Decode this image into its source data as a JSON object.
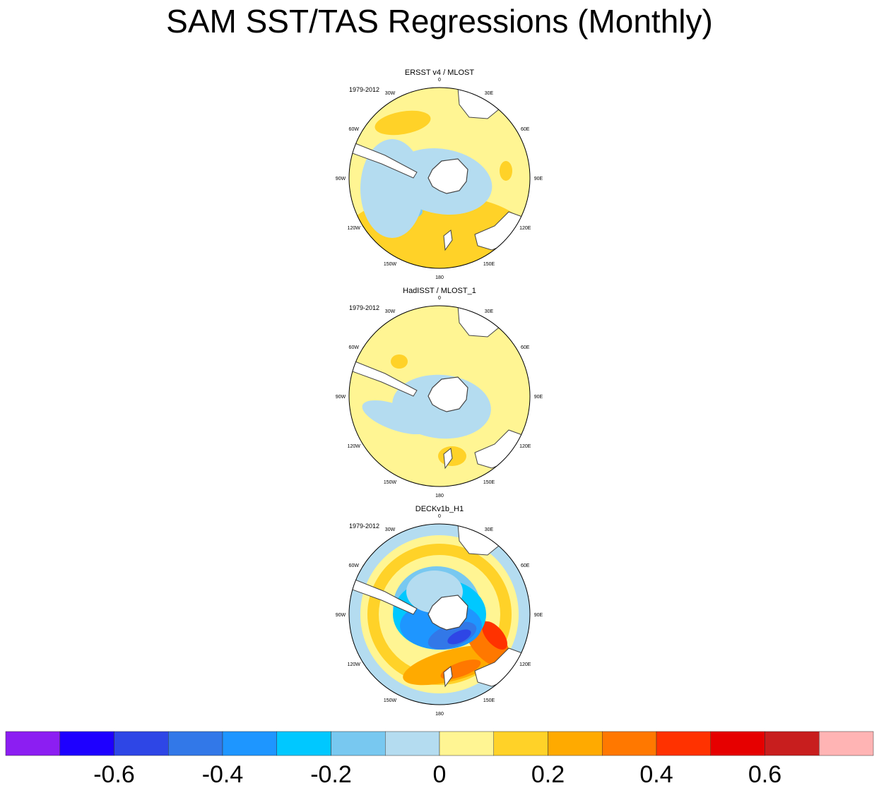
{
  "title": "SAM SST/TAS Regressions (Monthly)",
  "chart_data": {
    "type": "polar contour map",
    "projection": "south polar stereographic",
    "longitude_labels": [
      "0",
      "30E",
      "60E",
      "90E",
      "120E",
      "150E",
      "180",
      "150W",
      "120W",
      "90W",
      "60W",
      "30W"
    ],
    "panels": [
      {
        "name": "ERSST v4 / MLOST",
        "period": "1979-2012"
      },
      {
        "name": "HadISST / MLOST_1",
        "period": "1979-2012"
      },
      {
        "name": "DECKv1b_H1",
        "period": "1979-2012"
      }
    ],
    "colorbar": {
      "levels": [
        -0.7,
        -0.6,
        -0.5,
        -0.4,
        -0.3,
        -0.2,
        -0.1,
        0,
        0.1,
        0.2,
        0.3,
        0.4,
        0.5,
        0.6,
        0.7
      ],
      "tick_labels": [
        "-0.6",
        "-0.4",
        "-0.2",
        "0",
        "0.2",
        "0.4",
        "0.6"
      ],
      "colors": [
        "#8c1ef2",
        "#1e00ff",
        "#2e46e6",
        "#3278e8",
        "#1e96ff",
        "#00c8ff",
        "#78c8f0",
        "#b4dcf0",
        "#fff593",
        "#ffd228",
        "#ffaa00",
        "#ff7800",
        "#ff3200",
        "#e60000",
        "#c81e1e",
        "#ffb4b4"
      ]
    }
  }
}
